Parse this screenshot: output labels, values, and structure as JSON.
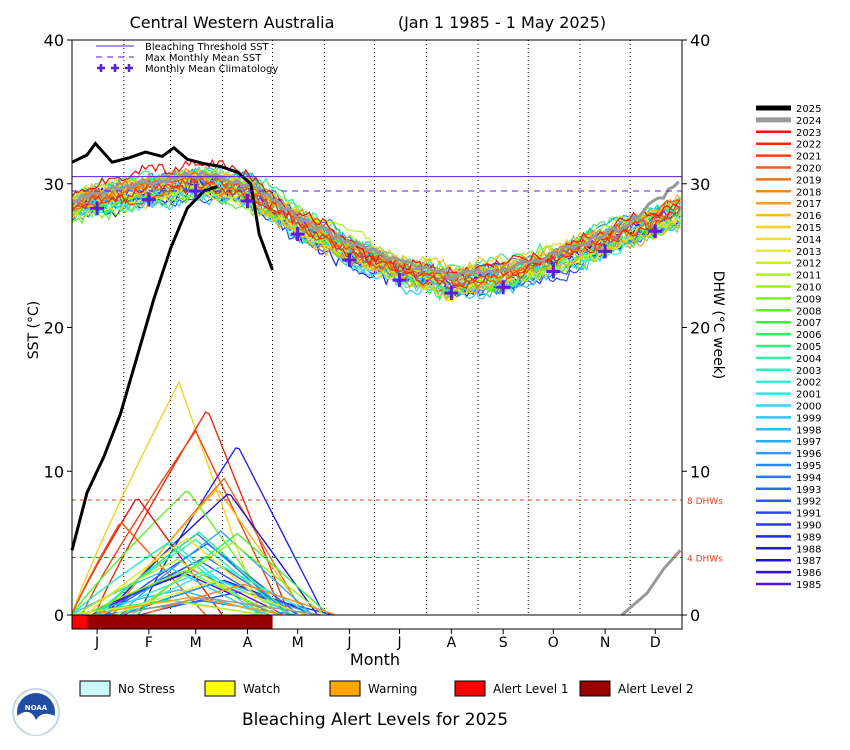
{
  "chart_data": {
    "type": "line",
    "title": "Central Western Australia",
    "date_range": "(Jan 1 1985 - 1 May 2025)",
    "ylabel_left": "SST (°C)",
    "ylabel_right": "DHW (°C week)",
    "xlabel": "Month",
    "ylim": [
      0,
      40
    ],
    "yticks": [
      "0",
      "10",
      "20",
      "30",
      "40"
    ],
    "months": [
      "J",
      "F",
      "M",
      "A",
      "M",
      "J",
      "J",
      "A",
      "S",
      "O",
      "N",
      "D"
    ],
    "bleaching_threshold_sst": 30.5,
    "max_monthly_mean_sst": 29.5,
    "dhw_thresholds": [
      {
        "value": 8,
        "label": "8 DHWs"
      },
      {
        "value": 4,
        "label": "4 DHWs"
      }
    ],
    "legend_top": [
      {
        "label": "Bleaching Threshold SST",
        "style": "solid",
        "color": "#5a1fd6"
      },
      {
        "label": "Max Monthly Mean SST",
        "style": "dashed",
        "color": "#5a1fd6"
      },
      {
        "label": "Monthly Mean Climatology",
        "style": "plus",
        "color": "#5a1fd6"
      }
    ],
    "climatology": [
      {
        "month": "J",
        "value": 28.3
      },
      {
        "month": "F",
        "value": 28.9
      },
      {
        "month": "M",
        "value": 29.5
      },
      {
        "month": "A",
        "value": 28.8
      },
      {
        "month": "M",
        "value": 26.5
      },
      {
        "month": "J",
        "value": 24.7
      },
      {
        "month": "J",
        "value": 23.3
      },
      {
        "month": "A",
        "value": 22.4
      },
      {
        "month": "S",
        "value": 22.8
      },
      {
        "month": "O",
        "value": 23.9
      },
      {
        "month": "N",
        "value": 25.3
      },
      {
        "month": "D",
        "value": 26.7
      }
    ],
    "sst_2025": [
      {
        "doy": 1,
        "value": 31.5
      },
      {
        "doy": 10,
        "value": 32.0
      },
      {
        "doy": 15,
        "value": 32.8
      },
      {
        "doy": 25,
        "value": 31.5
      },
      {
        "doy": 35,
        "value": 31.8
      },
      {
        "doy": 45,
        "value": 32.2
      },
      {
        "doy": 55,
        "value": 31.9
      },
      {
        "doy": 62,
        "value": 32.5
      },
      {
        "doy": 70,
        "value": 31.7
      },
      {
        "doy": 80,
        "value": 31.4
      },
      {
        "doy": 90,
        "value": 31.2
      },
      {
        "doy": 100,
        "value": 30.8
      },
      {
        "doy": 108,
        "value": 30.0
      },
      {
        "doy": 113,
        "value": 26.5
      },
      {
        "doy": 121,
        "value": 24.0
      }
    ],
    "dhw_2025": [
      {
        "doy": 1,
        "value": 4.5
      },
      {
        "doy": 10,
        "value": 8.5
      },
      {
        "doy": 20,
        "value": 11.0
      },
      {
        "doy": 30,
        "value": 14.0
      },
      {
        "doy": 40,
        "value": 18.0
      },
      {
        "doy": 50,
        "value": 22.0
      },
      {
        "doy": 60,
        "value": 25.5
      },
      {
        "doy": 70,
        "value": 28.3
      },
      {
        "doy": 80,
        "value": 29.5
      },
      {
        "doy": 88,
        "value": 29.8
      }
    ],
    "dhw_2024_end": [
      {
        "doy": 330,
        "value": 0
      },
      {
        "doy": 345,
        "value": 1.5
      },
      {
        "doy": 355,
        "value": 3.2
      },
      {
        "doy": 365,
        "value": 4.5
      }
    ],
    "dhw_peaks": [
      {
        "year": "2015",
        "peak": 16.2,
        "peak_doy": 65
      },
      {
        "year": "2022",
        "peak": 14.3,
        "peak_doy": 82
      },
      {
        "year": "2021",
        "peak": 12.8,
        "peak_doy": 75
      },
      {
        "year": "1989",
        "peak": 11.8,
        "peak_doy": 100
      },
      {
        "year": "2019",
        "peak": 9.5,
        "peak_doy": 92
      },
      {
        "year": "2016",
        "peak": 8.8,
        "peak_doy": 88
      },
      {
        "year": "1987",
        "peak": 8.5,
        "peak_doy": 95
      },
      {
        "year": "2008",
        "peak": 8.7,
        "peak_doy": 70
      },
      {
        "year": "2023",
        "peak": 8.2,
        "peak_doy": 40
      },
      {
        "year": "2020",
        "peak": 6.5,
        "peak_doy": 30
      }
    ],
    "alert_bar_2025": [
      {
        "from_doy": 1,
        "to_doy": 10,
        "level": "Alert Level 1"
      },
      {
        "from_doy": 10,
        "to_doy": 121,
        "level": "Alert Level 2"
      }
    ],
    "years_legend": [
      "2025",
      "2024",
      "2023",
      "2022",
      "2021",
      "2020",
      "2019",
      "2018",
      "2017",
      "2016",
      "2015",
      "2014",
      "2013",
      "2012",
      "2011",
      "2010",
      "2009",
      "2008",
      "2007",
      "2006",
      "2005",
      "2004",
      "2003",
      "2002",
      "2001",
      "2000",
      "1999",
      "1998",
      "1997",
      "1996",
      "1995",
      "1994",
      "1993",
      "1992",
      "1991",
      "1990",
      "1989",
      "1988",
      "1987",
      "1986",
      "1985"
    ],
    "year_colors": [
      "#000000",
      "#999999",
      "#ee1111",
      "#ee2a0c",
      "#f04410",
      "#f25a14",
      "#f36f18",
      "#f5881c",
      "#f7a020",
      "#f8b820",
      "#f8d020",
      "#f0e020",
      "#e0f020",
      "#c8f020",
      "#b0f020",
      "#98f020",
      "#80f020",
      "#60f030",
      "#40f040",
      "#30f060",
      "#30f080",
      "#30f0a0",
      "#30f0c0",
      "#30f0d8",
      "#30e8e8",
      "#30d8f0",
      "#30c8f0",
      "#30b8f0",
      "#30a8f0",
      "#3098f0",
      "#3088f0",
      "#3078f0",
      "#3068f0",
      "#3058f0",
      "#3048f0",
      "#2838f0",
      "#2028e8",
      "#1818e0",
      "#2010d8",
      "#3010d0",
      "#4a18d8"
    ],
    "alert_legend": [
      {
        "label": "No Stress",
        "color": "#c8f8f8"
      },
      {
        "label": "Watch",
        "color": "#ffff00"
      },
      {
        "label": "Warning",
        "color": "#ffa500"
      },
      {
        "label": "Alert Level 1",
        "color": "#ff0000"
      },
      {
        "label": "Alert Level 2",
        "color": "#990000"
      }
    ],
    "footer_title": "Bleaching Alert Levels for 2025",
    "logo_text": "NOAA"
  }
}
